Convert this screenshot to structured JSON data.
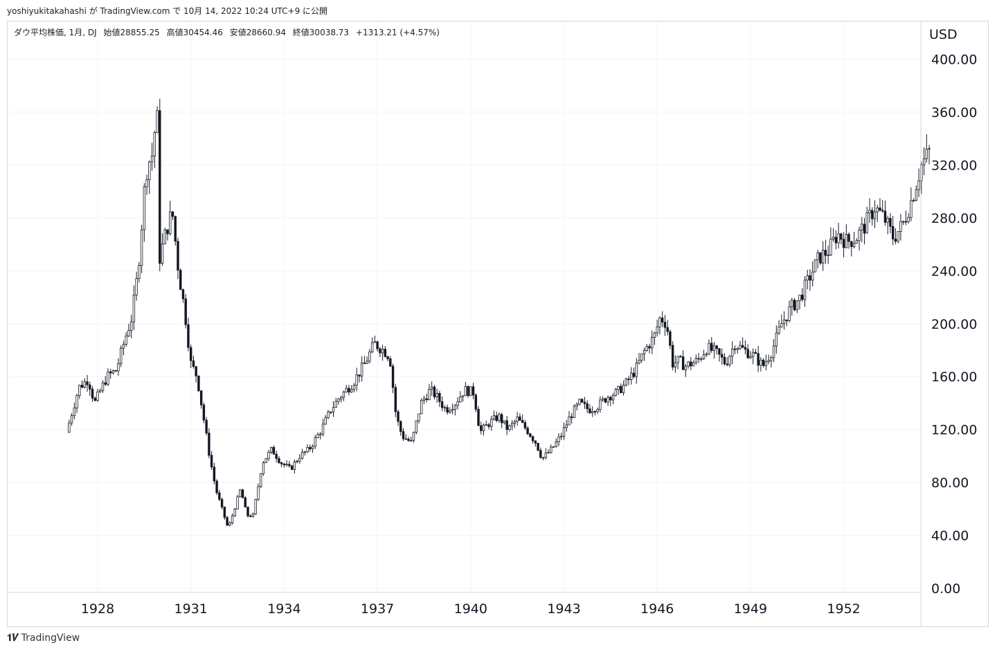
{
  "header": {
    "attribution": "yoshiyukitakahashi が TradingView.com で 10月 14, 2022 10:24 UTC+9 に公開"
  },
  "legend": {
    "symbol": "ダウ平均株価, 1月, DJ",
    "open": "始値28855.25",
    "high": "高値30454.46",
    "low": "安値28660.94",
    "close": "終値30038.73",
    "change": "+1313.21 (+4.57%)"
  },
  "footer": {
    "logo_text": "TradingView",
    "icon": "tradingview-logo-icon"
  },
  "colors": {
    "candle": "#131722",
    "grid": "#f0f3fa",
    "axis_text": "#131722"
  },
  "chart_data": {
    "type": "candlestick",
    "currency": "USD",
    "interval": "1月",
    "x_range": [
      1926.9,
      1954.9
    ],
    "ylim": [
      0,
      400
    ],
    "y_ticks": [
      "0.00",
      "40.00",
      "80.00",
      "120.00",
      "160.00",
      "200.00",
      "240.00",
      "280.00",
      "320.00",
      "360.00",
      "400.00"
    ],
    "x_ticks": [
      "1928",
      "1931",
      "1934",
      "1937",
      "1940",
      "1943",
      "1946",
      "1949",
      "1952"
    ],
    "grid": true,
    "monthly_close_path": [
      [
        1927.0,
        118
      ],
      [
        1927.4,
        152
      ],
      [
        1927.7,
        158
      ],
      [
        1927.9,
        140
      ],
      [
        1928.3,
        160
      ],
      [
        1928.6,
        165
      ],
      [
        1928.9,
        190
      ],
      [
        1929.1,
        205
      ],
      [
        1929.3,
        240
      ],
      [
        1929.5,
        300
      ],
      [
        1929.6,
        320
      ],
      [
        1929.8,
        330
      ],
      [
        1929.9,
        375
      ],
      [
        1930.0,
        250
      ],
      [
        1930.2,
        270
      ],
      [
        1930.4,
        285
      ],
      [
        1930.6,
        240
      ],
      [
        1930.8,
        210
      ],
      [
        1931.0,
        170
      ],
      [
        1931.2,
        160
      ],
      [
        1931.4,
        130
      ],
      [
        1931.6,
        100
      ],
      [
        1931.8,
        75
      ],
      [
        1932.0,
        60
      ],
      [
        1932.2,
        45
      ],
      [
        1932.4,
        60
      ],
      [
        1932.6,
        75
      ],
      [
        1932.8,
        55
      ],
      [
        1933.0,
        55
      ],
      [
        1933.3,
        95
      ],
      [
        1933.6,
        105
      ],
      [
        1933.9,
        95
      ],
      [
        1934.2,
        90
      ],
      [
        1934.5,
        100
      ],
      [
        1934.8,
        105
      ],
      [
        1935.2,
        120
      ],
      [
        1935.5,
        135
      ],
      [
        1935.8,
        145
      ],
      [
        1936.2,
        155
      ],
      [
        1936.6,
        170
      ],
      [
        1936.9,
        185
      ],
      [
        1937.2,
        180
      ],
      [
        1937.4,
        175
      ],
      [
        1937.6,
        130
      ],
      [
        1937.8,
        115
      ],
      [
        1938.1,
        110
      ],
      [
        1938.4,
        140
      ],
      [
        1938.7,
        150
      ],
      [
        1938.9,
        145
      ],
      [
        1939.2,
        135
      ],
      [
        1939.5,
        140
      ],
      [
        1939.8,
        150
      ],
      [
        1940.1,
        148
      ],
      [
        1940.3,
        118
      ],
      [
        1940.6,
        125
      ],
      [
        1940.9,
        130
      ],
      [
        1941.2,
        120
      ],
      [
        1941.5,
        128
      ],
      [
        1941.8,
        120
      ],
      [
        1942.1,
        110
      ],
      [
        1942.3,
        98
      ],
      [
        1942.6,
        105
      ],
      [
        1942.9,
        115
      ],
      [
        1943.2,
        130
      ],
      [
        1943.5,
        140
      ],
      [
        1943.8,
        135
      ],
      [
        1944.1,
        138
      ],
      [
        1944.4,
        145
      ],
      [
        1944.7,
        148
      ],
      [
        1945.0,
        155
      ],
      [
        1945.3,
        165
      ],
      [
        1945.6,
        180
      ],
      [
        1945.9,
        190
      ],
      [
        1946.1,
        205
      ],
      [
        1946.3,
        200
      ],
      [
        1946.5,
        170
      ],
      [
        1946.7,
        172
      ],
      [
        1946.9,
        168
      ],
      [
        1947.3,
        172
      ],
      [
        1947.6,
        182
      ],
      [
        1947.9,
        178
      ],
      [
        1948.2,
        170
      ],
      [
        1948.5,
        185
      ],
      [
        1948.8,
        180
      ],
      [
        1949.1,
        176
      ],
      [
        1949.4,
        168
      ],
      [
        1949.7,
        180
      ],
      [
        1950.0,
        200
      ],
      [
        1950.3,
        212
      ],
      [
        1950.6,
        220
      ],
      [
        1950.9,
        235
      ],
      [
        1951.2,
        250
      ],
      [
        1951.5,
        255
      ],
      [
        1951.8,
        268
      ],
      [
        1952.1,
        262
      ],
      [
        1952.4,
        265
      ],
      [
        1952.7,
        275
      ],
      [
        1953.0,
        288
      ],
      [
        1953.3,
        280
      ],
      [
        1953.6,
        265
      ],
      [
        1953.9,
        275
      ],
      [
        1954.2,
        295
      ],
      [
        1954.5,
        320
      ],
      [
        1954.8,
        332
      ]
    ]
  }
}
